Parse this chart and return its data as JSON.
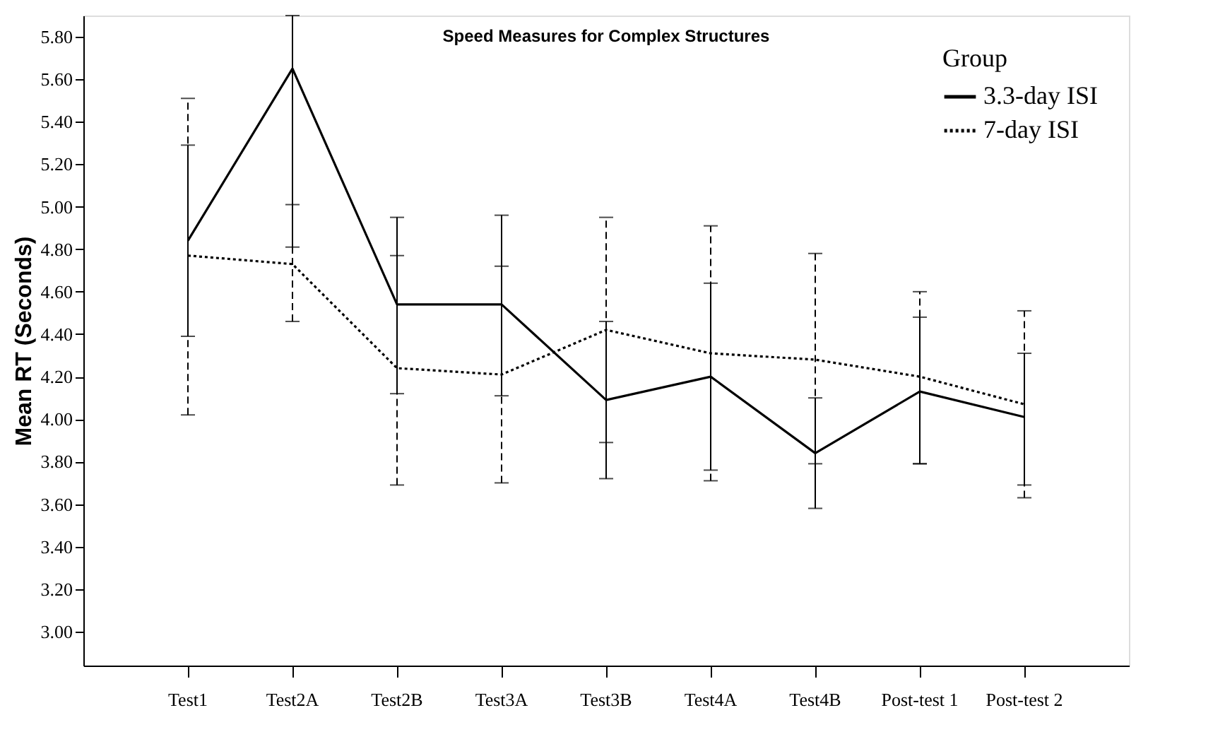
{
  "chart_data": {
    "type": "line",
    "title": "Speed Measures for Complex Structures",
    "ylabel": "Mean RT (Seconds)",
    "legend_title": "Group",
    "categories": [
      "Test1",
      "Test2A",
      "Test2B",
      "Test3A",
      "Test3B",
      "Test4A",
      "Test4B",
      "Post-test 1",
      "Post-test 2"
    ],
    "series": [
      {
        "name": "3.3-day ISI",
        "color": "#000000",
        "line_style": "solid",
        "values": [
          4.84,
          5.65,
          4.54,
          4.54,
          4.09,
          4.2,
          3.84,
          4.13,
          4.01
        ],
        "errors": [
          [
            4.39,
            5.29
          ],
          [
            4.81,
            5.9
          ],
          [
            4.12,
            4.95
          ],
          [
            4.11,
            4.96
          ],
          [
            3.72,
            4.46
          ],
          [
            3.76,
            4.64
          ],
          [
            3.58,
            4.1
          ],
          [
            3.79,
            4.48
          ],
          [
            3.69,
            4.31
          ]
        ]
      },
      {
        "name": "7-day ISI",
        "color": "#000000",
        "line_style": "dotted",
        "values": [
          4.77,
          4.73,
          4.24,
          4.21,
          4.42,
          4.31,
          4.28,
          4.2,
          4.07
        ],
        "errors": [
          [
            4.02,
            5.51
          ],
          [
            4.46,
            5.01
          ],
          [
            3.69,
            4.77
          ],
          [
            3.7,
            4.72
          ],
          [
            3.89,
            4.95
          ],
          [
            3.71,
            4.91
          ],
          [
            3.79,
            4.78
          ],
          [
            3.79,
            4.6
          ],
          [
            3.63,
            4.51
          ]
        ]
      }
    ],
    "ylim": [
      2.84,
      5.9
    ],
    "yticks": [
      {
        "value": 3.0,
        "label": "3.00"
      },
      {
        "value": 3.2,
        "label": "3.20"
      },
      {
        "value": 3.4,
        "label": "3.40"
      },
      {
        "value": 3.6,
        "label": "3.60"
      },
      {
        "value": 3.8,
        "label": "3.80"
      },
      {
        "value": 4.0,
        "label": "4.00"
      },
      {
        "value": 4.2,
        "label": "4.20"
      },
      {
        "value": 4.4,
        "label": "4.40"
      },
      {
        "value": 4.6,
        "label": "4.60"
      },
      {
        "value": 4.8,
        "label": "4.80"
      },
      {
        "value": 5.0,
        "label": "5.00"
      },
      {
        "value": 5.2,
        "label": "5.20"
      },
      {
        "value": 5.4,
        "label": "5.40"
      },
      {
        "value": 5.6,
        "label": "5.60"
      },
      {
        "value": 5.8,
        "label": "5.80"
      }
    ],
    "grid": false,
    "legend": "top right",
    "marker": "none"
  }
}
